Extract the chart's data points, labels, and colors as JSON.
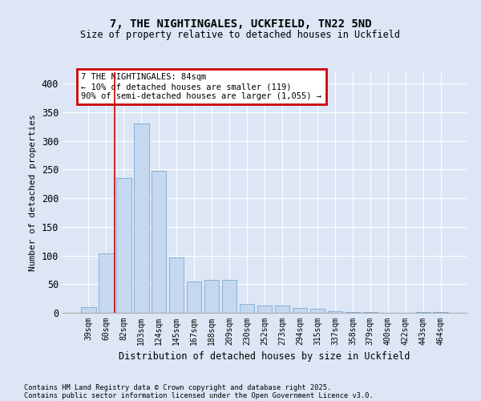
{
  "title1": "7, THE NIGHTINGALES, UCKFIELD, TN22 5ND",
  "title2": "Size of property relative to detached houses in Uckfield",
  "xlabel": "Distribution of detached houses by size in Uckfield",
  "ylabel": "Number of detached properties",
  "categories": [
    "39sqm",
    "60sqm",
    "82sqm",
    "103sqm",
    "124sqm",
    "145sqm",
    "167sqm",
    "188sqm",
    "209sqm",
    "230sqm",
    "252sqm",
    "273sqm",
    "294sqm",
    "315sqm",
    "337sqm",
    "358sqm",
    "379sqm",
    "400sqm",
    "422sqm",
    "443sqm",
    "464sqm"
  ],
  "values": [
    10,
    103,
    235,
    330,
    248,
    97,
    55,
    57,
    57,
    15,
    13,
    13,
    8,
    7,
    3,
    2,
    1,
    0,
    0,
    1,
    2
  ],
  "bar_color": "#c5d8f0",
  "bar_edge_color": "#7aaad4",
  "vline_x": 1.5,
  "vline_color": "#cc0000",
  "annotation_text": "7 THE NIGHTINGALES: 84sqm\n← 10% of detached houses are smaller (119)\n90% of semi-detached houses are larger (1,055) →",
  "annotation_box_color": "#cc0000",
  "ylim": [
    0,
    420
  ],
  "yticks": [
    0,
    50,
    100,
    150,
    200,
    250,
    300,
    350,
    400
  ],
  "footer1": "Contains HM Land Registry data © Crown copyright and database right 2025.",
  "footer2": "Contains public sector information licensed under the Open Government Licence v3.0.",
  "bg_color": "#dce6f5",
  "plot_bg_color": "#dce6f5"
}
